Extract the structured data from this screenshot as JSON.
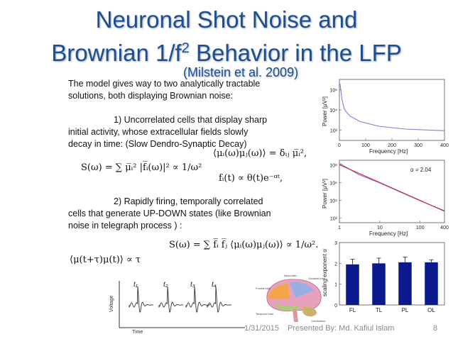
{
  "slide": {
    "title_line1": "Neuronal Shot Noise and",
    "title_line2_pre": "Brownian 1/f",
    "title_line2_sup": "2",
    "title_line2_post": " Behavior in the LFP",
    "citation": "(Milstein et al. 2009)"
  },
  "body": {
    "intro_line1": "The model gives way to two analytically tractable",
    "intro_line2": "solutions, both displaying Brownian noise:",
    "item1_line1": "1)  Uncorrelated cells that display sharp",
    "item1_line2": "initial activity, whose extracellular fields slowly",
    "item1_line3": "decay in time: (Slow Dendro-Synaptic Decay)",
    "item2_line1": "2)  Rapidly firing, temporally correlated",
    "item2_line2": "cells that generate UP-DOWN states (like Brownian",
    "item2_line3": "noise in telegraph process ) :"
  },
  "equations": {
    "eq1": "S(ω) = ∑ μ̅ᵢ² |f̅ᵢ(ω)|² ∝ 1/ω²",
    "eq2": "⟨μᵢ(ω)μⱼ(ω)⟩ = δᵢⱼ μ̅ᵢ²,",
    "eq3": "fᵢ(t) ∝ θ(t)e⁻ᵅᵗ,",
    "eq4": "S(ω) = ∑ f̅ᵢ f̅ⱼ ⟨μᵢ(ω)μⱼ(ω)⟩ ∝ 1/ω².",
    "eq5": "⟨μ(t+τ)μ(t)⟩ ∝ τ"
  },
  "spike_figure": {
    "ylabel": "Voltage",
    "xlabel": "Time",
    "spike_labels": [
      "t₁",
      "t₂",
      "t₃",
      "t₄"
    ]
  },
  "brain_figure": {
    "labels": [
      "Neocortex",
      "Frontal lobe",
      "Temporal lobe",
      "Occipital lobe",
      "Cerebellum"
    ]
  },
  "chart_data": [
    {
      "type": "line",
      "ylabel": "Power [μV²]",
      "xlabel": "Frequency [Hz]",
      "xticks": [
        "0",
        "100",
        "200",
        "300",
        "400"
      ],
      "yticks": [
        "10²",
        "10⁴",
        "10⁶"
      ],
      "xlim": [
        0,
        400
      ],
      "yscale": "log",
      "series": [
        {
          "color": "#7b7fd8",
          "x": [
            2,
            5,
            10,
            20,
            40,
            80,
            150,
            250,
            400
          ],
          "y": [
            4000000,
            1000000,
            100000,
            10000,
            2500,
            700,
            250,
            130,
            90
          ]
        }
      ]
    },
    {
      "type": "line",
      "ylabel": "Power [μV²]",
      "xlabel": "Frequency [Hz]",
      "xticks": [
        "1",
        "10",
        "100",
        "400"
      ],
      "yticks": [
        "10²",
        "10⁴",
        "10⁶",
        "10⁸"
      ],
      "xscale": "log",
      "yscale": "log",
      "annotation": "α = 2.04",
      "series": [
        {
          "color": "#cc1e4b",
          "x": [
            1,
            10,
            100,
            400
          ],
          "y": [
            100000000,
            1000000,
            10000,
            600
          ]
        },
        {
          "color": "#7b7fd8",
          "x": [
            1,
            3,
            10,
            30,
            100,
            400
          ],
          "y": [
            150000000,
            8000000,
            900000,
            100000,
            9000,
            700
          ]
        }
      ]
    },
    {
      "type": "bar",
      "ylabel": "scaling exponent α",
      "categories": [
        "FL",
        "TL",
        "PL",
        "OL"
      ],
      "values": [
        1.95,
        2.0,
        2.05,
        2.05
      ],
      "errors": [
        0.25,
        0.25,
        0.25,
        0.12
      ],
      "yticks": [
        "0",
        "1",
        "2",
        "3"
      ],
      "ylim": [
        0,
        3
      ],
      "bar_color": "#0a1a8c"
    }
  ],
  "footer": {
    "date": "1/31/2015",
    "presenter": "Presented By: Md. Kafiul Islam",
    "page": "8"
  }
}
